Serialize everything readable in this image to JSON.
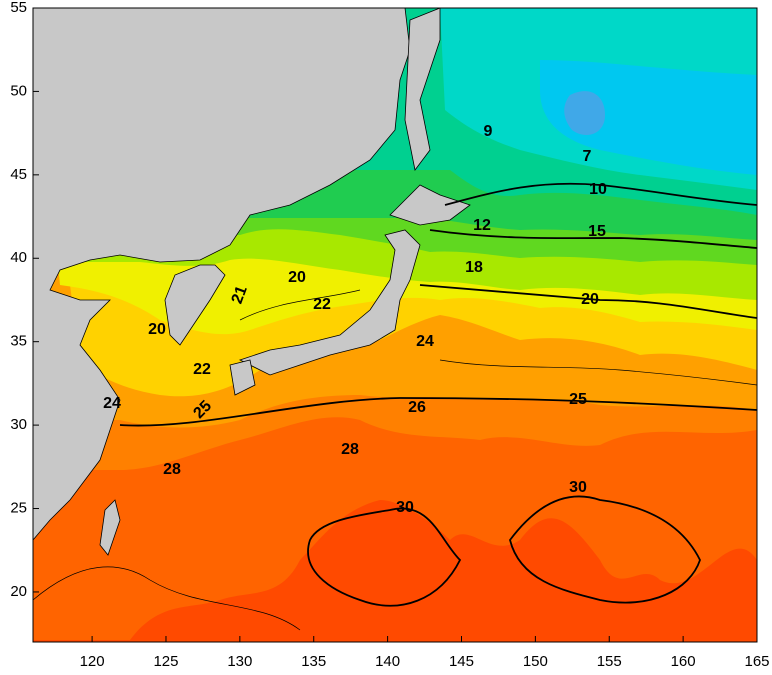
{
  "map": {
    "xlim": [
      116,
      165
    ],
    "ylim": [
      17,
      55
    ],
    "xticks": [
      120,
      125,
      130,
      135,
      140,
      145,
      150,
      155,
      160,
      165
    ],
    "yticks": [
      20,
      25,
      30,
      35,
      40,
      45,
      50,
      55
    ],
    "contour_labels": [
      9,
      7,
      10,
      12,
      15,
      18,
      20,
      20,
      21,
      22,
      20,
      22,
      24,
      24,
      25,
      26,
      25,
      28,
      28,
      30,
      30
    ]
  }
}
